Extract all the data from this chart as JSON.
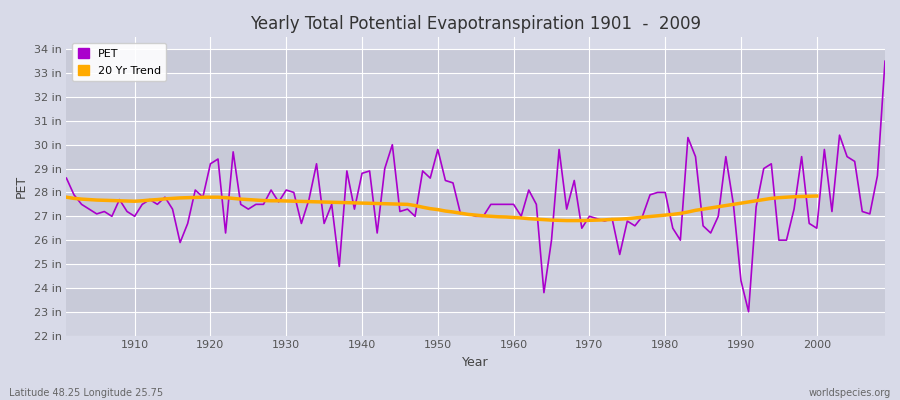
{
  "title": "Yearly Total Potential Evapotranspiration 1901  -  2009",
  "xlabel": "Year",
  "ylabel": "PET",
  "subtitle_left": "Latitude 48.25 Longitude 25.75",
  "subtitle_right": "worldspecies.org",
  "pet_color": "#aa00cc",
  "trend_color": "#ffaa00",
  "bg_color": "#d8dae8",
  "band_color_light": "#dcdee8",
  "band_color_dark": "#c8cad8",
  "grid_color": "#ffffff",
  "ylim": [
    22,
    34.5
  ],
  "ytick_labels": [
    "22 in",
    "23 in",
    "24 in",
    "25 in",
    "26 in",
    "27 in",
    "28 in",
    "29 in",
    "30 in",
    "31 in",
    "32 in",
    "33 in",
    "34 in"
  ],
  "ytick_values": [
    22,
    23,
    24,
    25,
    26,
    27,
    28,
    29,
    30,
    31,
    32,
    33,
    34
  ],
  "years": [
    1901,
    1902,
    1903,
    1904,
    1905,
    1906,
    1907,
    1908,
    1909,
    1910,
    1911,
    1912,
    1913,
    1914,
    1915,
    1916,
    1917,
    1918,
    1919,
    1920,
    1921,
    1922,
    1923,
    1924,
    1925,
    1926,
    1927,
    1928,
    1929,
    1930,
    1931,
    1932,
    1933,
    1934,
    1935,
    1936,
    1937,
    1938,
    1939,
    1940,
    1941,
    1942,
    1943,
    1944,
    1945,
    1946,
    1947,
    1948,
    1949,
    1950,
    1951,
    1952,
    1953,
    1954,
    1955,
    1956,
    1957,
    1958,
    1959,
    1960,
    1961,
    1962,
    1963,
    1964,
    1965,
    1966,
    1967,
    1968,
    1969,
    1970,
    1971,
    1972,
    1973,
    1974,
    1975,
    1976,
    1977,
    1978,
    1979,
    1980,
    1981,
    1982,
    1983,
    1984,
    1985,
    1986,
    1987,
    1988,
    1989,
    1990,
    1991,
    1992,
    1993,
    1994,
    1995,
    1996,
    1997,
    1998,
    1999,
    2000,
    2001,
    2002,
    2003,
    2004,
    2005,
    2006,
    2007,
    2008,
    2009
  ],
  "pet_values": [
    28.6,
    27.9,
    27.5,
    27.3,
    27.1,
    27.2,
    27.0,
    27.7,
    27.2,
    27.0,
    27.5,
    27.7,
    27.5,
    27.8,
    27.3,
    25.9,
    26.7,
    28.1,
    27.8,
    29.2,
    29.4,
    26.3,
    29.7,
    27.5,
    27.3,
    27.5,
    27.5,
    28.1,
    27.6,
    28.1,
    28.0,
    26.7,
    27.7,
    29.2,
    26.7,
    27.5,
    24.9,
    28.9,
    27.3,
    28.8,
    28.9,
    26.3,
    29.0,
    30.0,
    27.2,
    27.3,
    27.0,
    28.9,
    28.6,
    29.8,
    28.5,
    28.4,
    27.1,
    27.1,
    27.0,
    27.0,
    27.5,
    27.5,
    27.5,
    27.5,
    27.0,
    28.1,
    27.5,
    23.8,
    26.0,
    29.8,
    27.3,
    28.5,
    26.5,
    27.0,
    26.9,
    26.8,
    26.9,
    25.4,
    26.8,
    26.6,
    27.0,
    27.9,
    28.0,
    28.0,
    26.5,
    26.0,
    30.3,
    29.5,
    26.6,
    26.3,
    27.0,
    29.5,
    27.5,
    24.3,
    23.0,
    27.4,
    29.0,
    29.2,
    26.0,
    26.0,
    27.3,
    29.5,
    26.7,
    26.5,
    29.8,
    27.2,
    30.4,
    29.5,
    29.3,
    27.2,
    27.1,
    28.7,
    33.5
  ],
  "trend_years": [
    1901,
    1902,
    1903,
    1904,
    1905,
    1906,
    1907,
    1908,
    1909,
    1910,
    1911,
    1912,
    1913,
    1914,
    1915,
    1916,
    1917,
    1918,
    1919,
    1920,
    1921,
    1922,
    1923,
    1924,
    1925,
    1926,
    1927,
    1928,
    1929,
    1946,
    1947,
    1948,
    1949,
    1950,
    1951,
    1952,
    1953,
    1954,
    1955,
    1956,
    1957,
    1958,
    1959,
    1960,
    1961,
    1962,
    1963,
    1964,
    1965,
    1966,
    1967,
    1968,
    1969,
    1970,
    1971,
    1972,
    1973,
    1974,
    1975,
    1976,
    1977,
    1978,
    1979,
    1980,
    1981,
    1982,
    1983,
    1984,
    1985,
    1986,
    1987,
    1988,
    1989,
    1990,
    1991,
    1992,
    1993,
    1994,
    1995,
    1996,
    1997,
    1998,
    1999,
    2000
  ],
  "trend_values": [
    27.8,
    27.75,
    27.72,
    27.7,
    27.68,
    27.67,
    27.66,
    27.65,
    27.64,
    27.63,
    27.65,
    27.68,
    27.7,
    27.73,
    27.75,
    27.77,
    27.78,
    27.79,
    27.8,
    27.8,
    27.8,
    27.78,
    27.75,
    27.72,
    27.7,
    27.68,
    27.66,
    27.65,
    27.65,
    27.5,
    27.45,
    27.38,
    27.32,
    27.28,
    27.22,
    27.18,
    27.13,
    27.08,
    27.05,
    27.02,
    27.0,
    26.98,
    26.97,
    26.95,
    26.93,
    26.9,
    26.88,
    26.86,
    26.84,
    26.83,
    26.82,
    26.82,
    26.82,
    26.83,
    26.84,
    26.85,
    26.87,
    26.88,
    26.9,
    26.93,
    26.96,
    26.99,
    27.02,
    27.05,
    27.08,
    27.12,
    27.18,
    27.25,
    27.3,
    27.35,
    27.4,
    27.45,
    27.5,
    27.55,
    27.6,
    27.65,
    27.7,
    27.75,
    27.78,
    27.8,
    27.82,
    27.83,
    27.84,
    27.85
  ]
}
